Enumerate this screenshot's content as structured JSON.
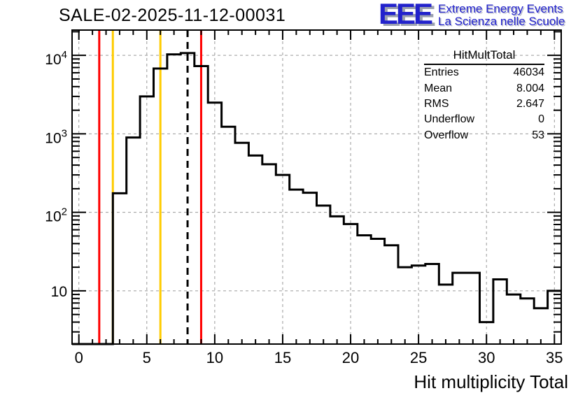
{
  "header": {
    "title": "SALE-02-2025-11-12-00031"
  },
  "logo": {
    "letters": "EEE",
    "line1": "Extreme Energy Events",
    "line2": "La Scienza nelle Scuole",
    "color": "#2222cc"
  },
  "stats_box": {
    "title": "HitMultTotal",
    "rows": [
      {
        "label": "Entries",
        "value": "46034"
      },
      {
        "label": "Mean",
        "value": "8.004"
      },
      {
        "label": "RMS",
        "value": "2.647"
      },
      {
        "label": "Underflow",
        "value": "0"
      },
      {
        "label": "Overflow",
        "value": "53"
      }
    ]
  },
  "chart_data": {
    "type": "bar",
    "subtype": "step-histogram",
    "title": "SALE-02-2025-11-12-00031",
    "xlabel": "Hit multiplicity Total",
    "ylabel": "",
    "yscale": "log",
    "xlim": [
      -0.5,
      35.5
    ],
    "ylim": [
      2.1,
      21000
    ],
    "grid": true,
    "legend": "none",
    "bin_width": 1,
    "bin_centers": [
      0,
      1,
      2,
      3,
      4,
      5,
      6,
      7,
      8,
      9,
      10,
      11,
      12,
      13,
      14,
      15,
      16,
      17,
      18,
      19,
      20,
      21,
      22,
      23,
      24,
      25,
      26,
      27,
      28,
      29,
      30,
      31,
      32,
      33,
      34,
      35
    ],
    "values": [
      0,
      0,
      0,
      175,
      900,
      3000,
      6800,
      10300,
      10700,
      7300,
      2500,
      1230,
      770,
      530,
      410,
      300,
      195,
      178,
      122,
      89,
      71,
      51,
      46,
      38,
      20,
      21,
      22,
      12,
      17,
      17,
      4,
      14,
      9,
      8,
      6,
      10
    ],
    "x_ticks_major": [
      0,
      5,
      10,
      15,
      20,
      25,
      30,
      35
    ],
    "x_minor_step": 1,
    "y_ticks_major": [
      10,
      100,
      1000,
      10000
    ],
    "y_tick_labels": [
      {
        "value": 10,
        "base": "10",
        "exp": ""
      },
      {
        "value": 100,
        "base": "10",
        "exp": "2"
      },
      {
        "value": 1000,
        "base": "10",
        "exp": "3"
      },
      {
        "value": 10000,
        "base": "10",
        "exp": "4"
      }
    ],
    "marker_lines": [
      {
        "x": 1.5,
        "color": "#ff0000",
        "style": "solid"
      },
      {
        "x": 2.5,
        "color": "#ffcc00",
        "style": "solid"
      },
      {
        "x": 6,
        "color": "#ffcc00",
        "style": "solid"
      },
      {
        "x": 8,
        "color": "#000000",
        "style": "dashed"
      },
      {
        "x": 9,
        "color": "#ff0000",
        "style": "solid"
      }
    ],
    "colors": {
      "line": "#000000",
      "grid": "#9a9a9a",
      "frame": "#000000",
      "background": "#ffffff"
    }
  }
}
